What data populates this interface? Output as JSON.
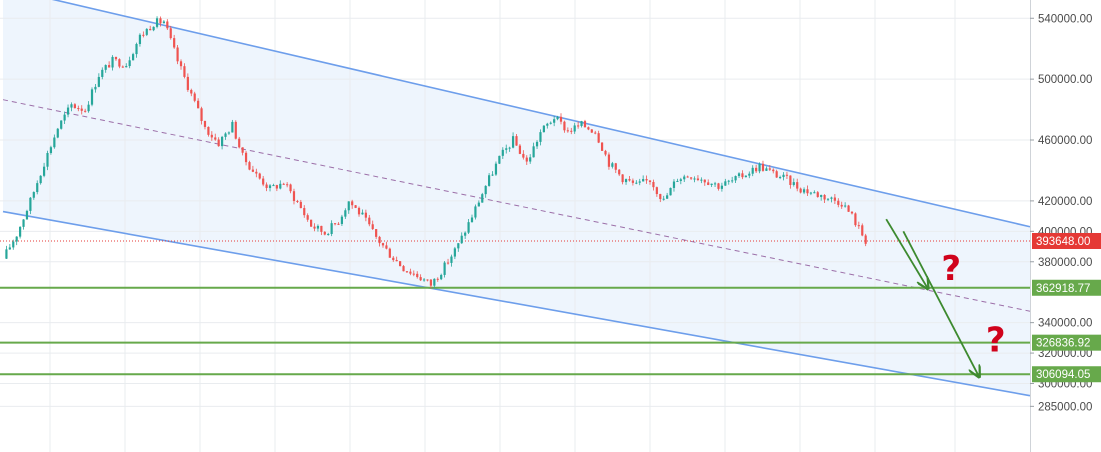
{
  "chart_data": {
    "type": "candlestick",
    "title": "",
    "xlabel": "",
    "ylabel": "",
    "ylim": [
      255000,
      552000
    ],
    "y_ticks": [
      {
        "value": 540000,
        "label": "540000.00"
      },
      {
        "value": 500000,
        "label": "500000.00"
      },
      {
        "value": 460000,
        "label": "460000.00"
      },
      {
        "value": 420000,
        "label": "420000.00"
      },
      {
        "value": 400000,
        "label": "400000.00"
      },
      {
        "value": 380000,
        "label": "380000.00"
      },
      {
        "value": 340000,
        "label": "340000.00"
      },
      {
        "value": 320000,
        "label": "320000.00"
      },
      {
        "value": 300000,
        "label": "300000.00"
      },
      {
        "value": 285000,
        "label": "285000.00"
      }
    ],
    "grid": true,
    "up_color": "#26a69a",
    "down_color": "#ef5350",
    "close_path": [
      [
        0,
        382000
      ],
      [
        4,
        398000
      ],
      [
        8,
        420000
      ],
      [
        12,
        445000
      ],
      [
        16,
        468000
      ],
      [
        20,
        483000
      ],
      [
        24,
        480000
      ],
      [
        28,
        503000
      ],
      [
        32,
        512000
      ],
      [
        36,
        510000
      ],
      [
        40,
        528000
      ],
      [
        44,
        537000
      ],
      [
        47,
        538000
      ],
      [
        51,
        512000
      ],
      [
        55,
        490000
      ],
      [
        59,
        468000
      ],
      [
        63,
        458000
      ],
      [
        67,
        470000
      ],
      [
        70,
        449000
      ],
      [
        74,
        437000
      ],
      [
        78,
        428000
      ],
      [
        82,
        432000
      ],
      [
        86,
        419000
      ],
      [
        90,
        404000
      ],
      [
        94,
        399000
      ],
      [
        98,
        407000
      ],
      [
        101,
        420000
      ],
      [
        105,
        410000
      ],
      [
        109,
        396000
      ],
      [
        113,
        385000
      ],
      [
        117,
        376000
      ],
      [
        121,
        371000
      ],
      [
        125,
        365000
      ],
      [
        129,
        377000
      ],
      [
        133,
        391000
      ],
      [
        137,
        410000
      ],
      [
        141,
        430000
      ],
      [
        145,
        448000
      ],
      [
        149,
        460000
      ],
      [
        153,
        445000
      ],
      [
        157,
        465000
      ],
      [
        161,
        475000
      ],
      [
        165,
        466000
      ],
      [
        169,
        470000
      ],
      [
        173,
        466000
      ],
      [
        177,
        445000
      ],
      [
        181,
        435000
      ],
      [
        185,
        430000
      ],
      [
        189,
        434000
      ],
      [
        193,
        420000
      ],
      [
        197,
        435000
      ],
      [
        201,
        437000
      ],
      [
        205,
        434000
      ],
      [
        209,
        430000
      ],
      [
        213,
        433000
      ],
      [
        217,
        438000
      ],
      [
        221,
        443000
      ],
      [
        225,
        438000
      ],
      [
        229,
        434000
      ],
      [
        233,
        428000
      ],
      [
        237,
        425000
      ],
      [
        241,
        422000
      ],
      [
        245,
        419000
      ],
      [
        248,
        410000
      ],
      [
        252,
        394000
      ]
    ],
    "last_price": {
      "value": 393648,
      "label": "393648.00",
      "color": "#e53935"
    },
    "levels": [
      {
        "value": 362918.77,
        "label": "362918.77"
      },
      {
        "value": 326836.92,
        "label": "326836.92"
      },
      {
        "value": 306094.05,
        "label": "306094.05"
      }
    ],
    "level_color": "#67a94b",
    "channel": {
      "upper": [
        [
          0,
          560000
        ],
        [
          300,
          403000
        ]
      ],
      "lower": [
        [
          0,
          413000
        ],
        [
          300,
          292000
        ]
      ],
      "mid": [
        [
          0,
          486500
        ],
        [
          300,
          347500
        ]
      ],
      "line_color": "#6d9eeb",
      "fill_color": "#eef5fd",
      "mid_color": "#9c6fa8"
    },
    "arrows": [
      {
        "from": [
          258,
          408000
        ],
        "to": [
          270,
          363000
        ]
      },
      {
        "from": [
          263,
          400000
        ],
        "to": [
          285,
          305000
        ]
      }
    ],
    "arrow_color": "#3d8a2f",
    "annotations": [
      {
        "text": "?",
        "at": [
          277,
          368000
        ]
      },
      {
        "text": "?",
        "at": [
          290,
          321000
        ]
      }
    ],
    "annotation_color": "#d0021b"
  }
}
